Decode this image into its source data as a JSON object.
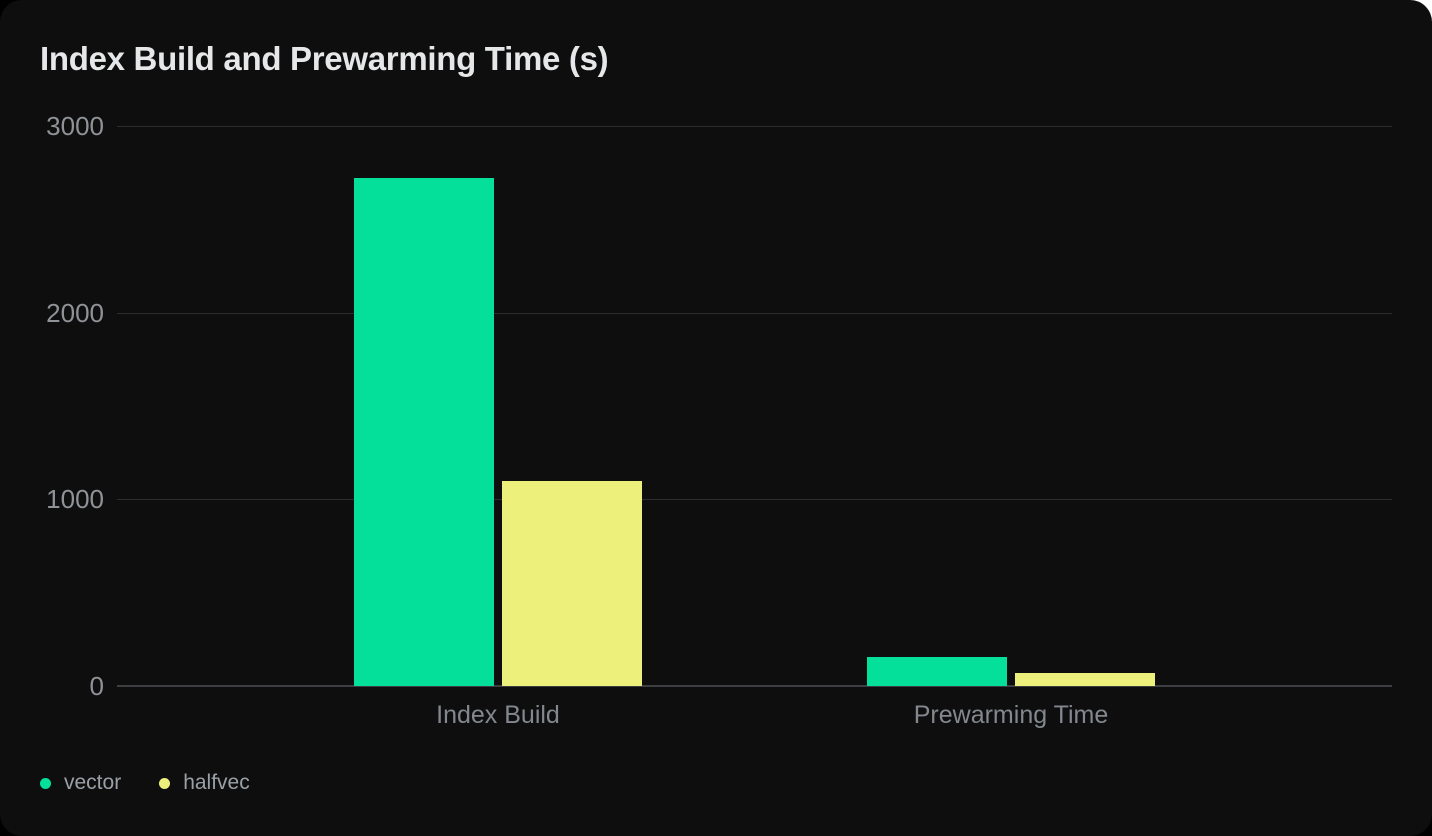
{
  "chart_data": {
    "type": "bar",
    "title": "Index Build and Prewarming Time (s)",
    "unit": "s",
    "categories": [
      "Index Build",
      "Prewarming Time"
    ],
    "series": [
      {
        "name": "vector",
        "color": "#04e09a",
        "values": [
          2720,
          155
        ]
      },
      {
        "name": "halfvec",
        "color": "#edf17b",
        "values": [
          1100,
          72
        ]
      }
    ],
    "xlabel": "",
    "ylabel": "",
    "ylim": [
      0,
      3000
    ],
    "yticks": [
      0,
      1000,
      2000,
      3000
    ],
    "grid": true,
    "legend_position": "bottom-left",
    "theme": {
      "page_background": "#000000",
      "card_background": "#0e0e0e",
      "outside_corner_background": "#ffffff",
      "gridline_color": "#2c2d30",
      "zero_line_color": "#3d3e42",
      "title_color": "#e6e7e9",
      "tick_label_color": "#8f9296",
      "category_label_color": "#83878e",
      "legend_text_color": "#9aa0a6"
    }
  }
}
